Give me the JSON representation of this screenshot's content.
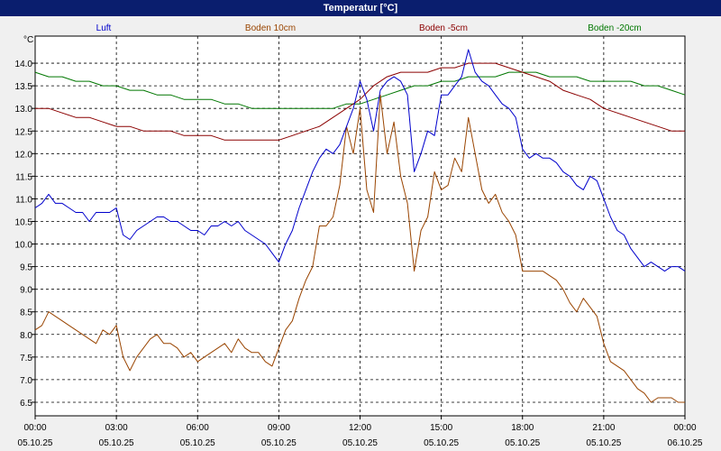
{
  "title": "Temperatur [°C]",
  "chart_data": {
    "type": "line",
    "ylabel": "°C",
    "ylim": [
      6.2,
      14.6
    ],
    "yticks": [
      6.5,
      7.0,
      7.5,
      8.0,
      8.5,
      9.0,
      9.5,
      10.0,
      10.5,
      11.0,
      11.5,
      12.0,
      12.5,
      13.0,
      13.5,
      14.0
    ],
    "ytick_labels": [
      "6.5",
      "7.0",
      "7.5",
      "8.0",
      "8.5",
      "9.0",
      "9.5",
      "10.0",
      "10.5",
      "11.0",
      "11.5",
      "12.0",
      "12.5",
      "13.0",
      "13.5",
      "14.0"
    ],
    "xlim": [
      0,
      24
    ],
    "xticks": [
      0,
      3,
      6,
      9,
      12,
      15,
      18,
      21,
      24
    ],
    "xtick_times": [
      "00:00",
      "03:00",
      "06:00",
      "09:00",
      "12:00",
      "15:00",
      "18:00",
      "21:00",
      "00:00"
    ],
    "xtick_dates": [
      "05.10.25",
      "05.10.25",
      "05.10.25",
      "05.10.25",
      "05.10.25",
      "05.10.25",
      "05.10.25",
      "05.10.25",
      "06.10.25"
    ],
    "grid": true,
    "legend_position": "top",
    "series": [
      {
        "name": "Luft",
        "color": "#0000cc",
        "x": [
          0,
          0.25,
          0.5,
          0.75,
          1,
          1.25,
          1.5,
          1.75,
          2,
          2.25,
          2.5,
          2.75,
          3,
          3.25,
          3.5,
          3.75,
          4,
          4.25,
          4.5,
          4.75,
          5,
          5.25,
          5.5,
          5.75,
          6,
          6.25,
          6.5,
          6.75,
          7,
          7.25,
          7.5,
          7.75,
          8,
          8.25,
          8.5,
          8.75,
          9,
          9.25,
          9.5,
          9.75,
          10,
          10.25,
          10.5,
          10.75,
          11,
          11.25,
          11.5,
          11.75,
          12,
          12.25,
          12.5,
          12.75,
          13,
          13.25,
          13.5,
          13.75,
          14,
          14.25,
          14.5,
          14.75,
          15,
          15.25,
          15.5,
          15.75,
          16,
          16.25,
          16.5,
          16.75,
          17,
          17.25,
          17.5,
          17.75,
          18,
          18.25,
          18.5,
          18.75,
          19,
          19.25,
          19.5,
          19.75,
          20,
          20.25,
          20.5,
          20.75,
          21,
          21.25,
          21.5,
          21.75,
          22,
          22.25,
          22.5,
          22.75,
          23,
          23.25,
          23.5,
          23.75,
          24
        ],
        "y": [
          10.8,
          10.9,
          11.1,
          10.9,
          10.9,
          10.8,
          10.7,
          10.7,
          10.5,
          10.7,
          10.7,
          10.7,
          10.8,
          10.2,
          10.1,
          10.3,
          10.4,
          10.5,
          10.6,
          10.6,
          10.5,
          10.5,
          10.4,
          10.3,
          10.3,
          10.2,
          10.4,
          10.4,
          10.5,
          10.4,
          10.5,
          10.3,
          10.2,
          10.1,
          10.0,
          9.8,
          9.6,
          10.0,
          10.3,
          10.8,
          11.2,
          11.6,
          11.9,
          12.1,
          12.0,
          12.2,
          12.6,
          13.0,
          13.6,
          13.2,
          12.5,
          13.4,
          13.6,
          13.7,
          13.6,
          13.3,
          11.6,
          12.0,
          12.5,
          12.4,
          13.3,
          13.3,
          13.5,
          13.7,
          14.3,
          13.8,
          13.6,
          13.5,
          13.3,
          13.1,
          13.0,
          12.8,
          12.1,
          11.9,
          12.0,
          11.9,
          11.9,
          11.8,
          11.6,
          11.5,
          11.3,
          11.2,
          11.5,
          11.4,
          11.0,
          10.6,
          10.3,
          10.2,
          9.9,
          9.7,
          9.5,
          9.6,
          9.5,
          9.4,
          9.5,
          9.5,
          9.4
        ]
      },
      {
        "name": "Boden 10cm",
        "color": "#994400",
        "x": [
          0,
          0.25,
          0.5,
          0.75,
          1,
          1.25,
          1.5,
          1.75,
          2,
          2.25,
          2.5,
          2.75,
          3,
          3.25,
          3.5,
          3.75,
          4,
          4.25,
          4.5,
          4.75,
          5,
          5.25,
          5.5,
          5.75,
          6,
          6.25,
          6.5,
          6.75,
          7,
          7.25,
          7.5,
          7.75,
          8,
          8.25,
          8.5,
          8.75,
          9,
          9.25,
          9.5,
          9.75,
          10,
          10.25,
          10.5,
          10.75,
          11,
          11.25,
          11.5,
          11.75,
          12,
          12.25,
          12.5,
          12.75,
          13,
          13.25,
          13.5,
          13.75,
          14,
          14.25,
          14.5,
          14.75,
          15,
          15.25,
          15.5,
          15.75,
          16,
          16.25,
          16.5,
          16.75,
          17,
          17.25,
          17.5,
          17.75,
          18,
          18.25,
          18.5,
          18.75,
          19,
          19.25,
          19.5,
          19.75,
          20,
          20.25,
          20.5,
          20.75,
          21,
          21.25,
          21.5,
          21.75,
          22,
          22.25,
          22.5,
          22.75,
          23,
          23.25,
          23.5,
          23.75,
          24
        ],
        "y": [
          8.1,
          8.2,
          8.5,
          8.4,
          8.3,
          8.2,
          8.1,
          8.0,
          7.9,
          7.8,
          8.1,
          8.0,
          8.2,
          7.5,
          7.2,
          7.5,
          7.7,
          7.9,
          8.0,
          7.8,
          7.8,
          7.7,
          7.5,
          7.6,
          7.4,
          7.5,
          7.6,
          7.7,
          7.8,
          7.6,
          7.9,
          7.7,
          7.6,
          7.6,
          7.4,
          7.3,
          7.7,
          8.1,
          8.3,
          8.8,
          9.2,
          9.5,
          10.4,
          10.4,
          10.6,
          11.3,
          12.6,
          12.0,
          13.0,
          11.2,
          10.7,
          13.3,
          12.0,
          12.7,
          11.5,
          10.9,
          9.4,
          10.3,
          10.6,
          11.6,
          11.2,
          11.3,
          11.9,
          11.6,
          12.8,
          12.0,
          11.2,
          10.9,
          11.1,
          10.7,
          10.5,
          10.2,
          9.4,
          9.4,
          9.4,
          9.4,
          9.3,
          9.2,
          9.0,
          8.7,
          8.5,
          8.8,
          8.6,
          8.4,
          7.8,
          7.4,
          7.3,
          7.2,
          7.0,
          6.8,
          6.7,
          6.5,
          6.6,
          6.6,
          6.6,
          6.5,
          6.5
        ]
      },
      {
        "name": "Boden -5cm",
        "color": "#8b0000",
        "x": [
          0,
          0.5,
          1,
          1.5,
          2,
          2.5,
          3,
          3.5,
          4,
          4.5,
          5,
          5.5,
          6,
          6.5,
          7,
          7.5,
          8,
          8.5,
          9,
          9.5,
          10,
          10.5,
          11,
          11.5,
          12,
          12.5,
          13,
          13.5,
          14,
          14.5,
          15,
          15.5,
          16,
          16.5,
          17,
          17.5,
          18,
          18.5,
          19,
          19.5,
          20,
          20.5,
          21,
          21.5,
          22,
          22.5,
          23,
          23.5,
          24
        ],
        "y": [
          13.0,
          13.0,
          12.9,
          12.8,
          12.8,
          12.7,
          12.6,
          12.6,
          12.5,
          12.5,
          12.5,
          12.4,
          12.4,
          12.4,
          12.3,
          12.3,
          12.3,
          12.3,
          12.3,
          12.4,
          12.5,
          12.6,
          12.8,
          13.0,
          13.2,
          13.5,
          13.7,
          13.8,
          13.8,
          13.8,
          13.9,
          13.9,
          14.0,
          14.0,
          14.0,
          13.9,
          13.8,
          13.7,
          13.6,
          13.4,
          13.3,
          13.2,
          13.0,
          12.9,
          12.8,
          12.7,
          12.6,
          12.5,
          12.5
        ]
      },
      {
        "name": "Boden -20cm",
        "color": "#007700",
        "x": [
          0,
          0.5,
          1,
          1.5,
          2,
          2.5,
          3,
          3.5,
          4,
          4.5,
          5,
          5.5,
          6,
          6.5,
          7,
          7.5,
          8,
          8.5,
          9,
          9.5,
          10,
          10.5,
          11,
          11.5,
          12,
          12.5,
          13,
          13.5,
          14,
          14.5,
          15,
          15.5,
          16,
          16.5,
          17,
          17.5,
          18,
          18.5,
          19,
          19.5,
          20,
          20.5,
          21,
          21.5,
          22,
          22.5,
          23,
          23.5,
          24
        ],
        "y": [
          13.8,
          13.7,
          13.7,
          13.6,
          13.6,
          13.5,
          13.5,
          13.4,
          13.4,
          13.3,
          13.3,
          13.2,
          13.2,
          13.2,
          13.1,
          13.1,
          13.0,
          13.0,
          13.0,
          13.0,
          13.0,
          13.0,
          13.0,
          13.1,
          13.1,
          13.2,
          13.3,
          13.4,
          13.5,
          13.5,
          13.6,
          13.6,
          13.7,
          13.7,
          13.7,
          13.8,
          13.8,
          13.8,
          13.7,
          13.7,
          13.7,
          13.6,
          13.6,
          13.6,
          13.6,
          13.5,
          13.5,
          13.4,
          13.3
        ]
      }
    ]
  }
}
